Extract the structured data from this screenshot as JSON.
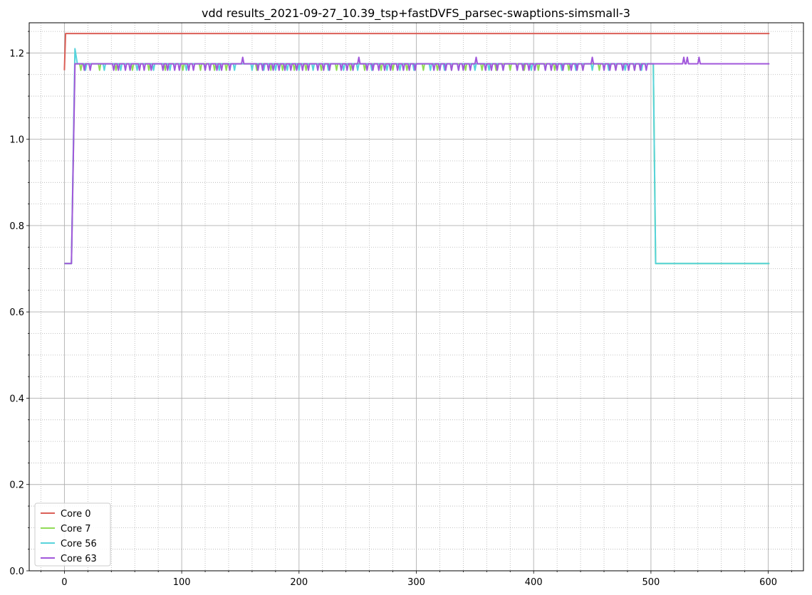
{
  "chart_data": {
    "type": "line",
    "title": "vdd results_2021-09-27_10.39_tsp+fastDVFS_parsec-swaptions-simsmall-3",
    "xlabel": "",
    "ylabel": "",
    "xlim": [
      -30,
      630
    ],
    "ylim": [
      0.0,
      1.27
    ],
    "x_major_ticks": [
      0,
      100,
      200,
      300,
      400,
      500,
      600
    ],
    "x_minor_step": 20,
    "y_major_ticks": [
      0.0,
      0.2,
      0.4,
      0.6,
      0.8,
      1.0,
      1.2
    ],
    "y_minor_step": 0.05,
    "grid": {
      "major": true,
      "minor": true
    },
    "legend_position": "bottom-left",
    "series": [
      {
        "name": "Core 0",
        "color": "#db5f57",
        "points": [
          [
            0,
            1.16
          ],
          [
            1,
            1.245
          ],
          [
            601,
            1.245
          ]
        ],
        "dips": []
      },
      {
        "name": "Core 7",
        "color": "#91db57",
        "base": 1.175,
        "dip": 1.16,
        "start": [
          [
            0,
            0.712
          ],
          [
            6,
            0.712
          ],
          [
            9,
            1.175
          ]
        ],
        "end_segment": [
          [
            502,
            1.175
          ],
          [
            504,
            0.712
          ],
          [
            601,
            0.712
          ]
        ],
        "dips": [
          14,
          30,
          44,
          58,
          72,
          86,
          101,
          116,
          128,
          138,
          164,
          176,
          186,
          196,
          206,
          219,
          232,
          244,
          256,
          270,
          280,
          292,
          306,
          318,
          330,
          342,
          356,
          368,
          380,
          392,
          404,
          418,
          430,
          442,
          456,
          470,
          486
        ]
      },
      {
        "name": "Core 56",
        "color": "#57d3db",
        "base": 1.175,
        "dip": 1.16,
        "start": [
          [
            0,
            0.712
          ],
          [
            6,
            0.712
          ],
          [
            9,
            1.21
          ],
          [
            11,
            1.175
          ]
        ],
        "end_segment": [
          [
            502,
            1.175
          ],
          [
            504,
            0.712
          ],
          [
            601,
            0.712
          ]
        ],
        "dips": [
          18,
          34,
          48,
          62,
          76,
          90,
          104,
          120,
          132,
          145,
          160,
          170,
          180,
          190,
          200,
          212,
          225,
          238,
          250,
          262,
          275,
          286,
          298,
          312,
          324,
          336,
          350,
          362,
          374,
          386,
          398,
          410,
          424,
          436,
          450,
          464,
          478,
          492
        ]
      },
      {
        "name": "Core 63",
        "color": "#a157db",
        "base": 1.175,
        "dip": 1.16,
        "spike": 1.19,
        "start": [
          [
            0,
            0.712
          ],
          [
            6,
            0.712
          ],
          [
            9,
            1.175
          ]
        ],
        "end_segment": [
          [
            601,
            1.175
          ]
        ],
        "dips": [
          17,
          22,
          42,
          46,
          52,
          56,
          64,
          68,
          74,
          84,
          88,
          94,
          98,
          106,
          110,
          120,
          124,
          130,
          134,
          141,
          165,
          169,
          174,
          178,
          183,
          188,
          193,
          198,
          203,
          208,
          216,
          221,
          226,
          236,
          241,
          246,
          258,
          263,
          268,
          273,
          278,
          284,
          289,
          294,
          299,
          315,
          320,
          325,
          330,
          336,
          340,
          346,
          359,
          364,
          369,
          374,
          386,
          391,
          396,
          401,
          410,
          415,
          420,
          425,
          432,
          437,
          442,
          460,
          465,
          470,
          476,
          481,
          486,
          491,
          496
        ],
        "spikes": [
          152,
          251,
          351,
          450,
          528,
          531,
          541
        ]
      }
    ]
  }
}
